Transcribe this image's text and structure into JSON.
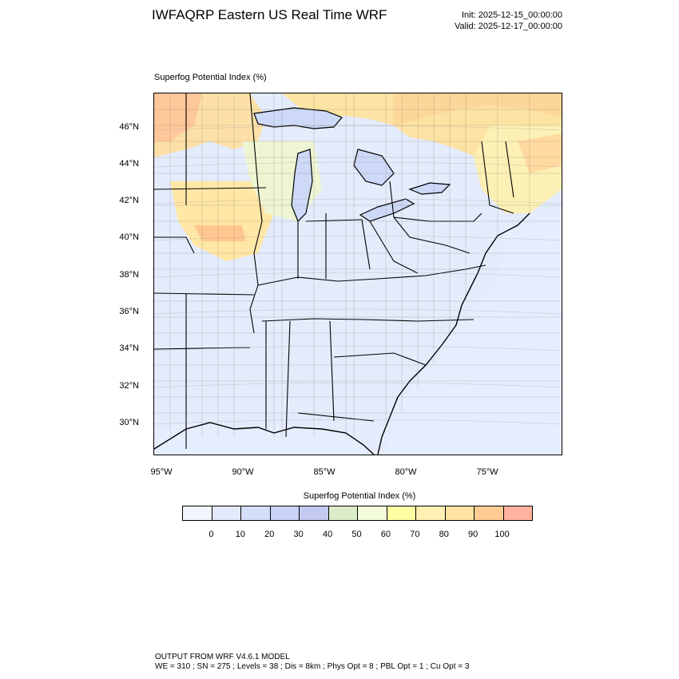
{
  "header": {
    "title": "IWFAQRP Eastern US Real Time WRF",
    "init": "Init: 2025-12-15_00:00:00",
    "valid": "Valid: 2025-12-17_00:00:00"
  },
  "map": {
    "label": "Superfog Potential Index   (%)",
    "lat_labels": [
      "46°N",
      "44°N",
      "42°N",
      "40°N",
      "38°N",
      "36°N",
      "34°N",
      "32°N",
      "30°N"
    ],
    "lon_labels": [
      "95°W",
      "90°W",
      "85°W",
      "80°W",
      "75°W"
    ]
  },
  "colorbar": {
    "title": "Superfog Potential Index  (%)",
    "ticks": [
      "0",
      "10",
      "20",
      "30",
      "40",
      "50",
      "60",
      "70",
      "80",
      "90",
      "100"
    ],
    "colors": [
      "#f1f4fd",
      "#e3e9fb",
      "#d5def9",
      "#c9d3f6",
      "#c3c9f0",
      "#dcebc8",
      "#f1fbdc",
      "#fffea2",
      "#fff0b4",
      "#ffe3a0",
      "#ffcc93",
      "#ffb39e"
    ]
  },
  "footer": {
    "line1": "OUTPUT FROM WRF V4.6.1 MODEL",
    "line2": "WE = 310 ; SN = 275 ; Levels = 38 ; Dis = 8km ; Phys Opt = 8 ; PBL Opt = 1 ; Cu Opt = 3"
  }
}
